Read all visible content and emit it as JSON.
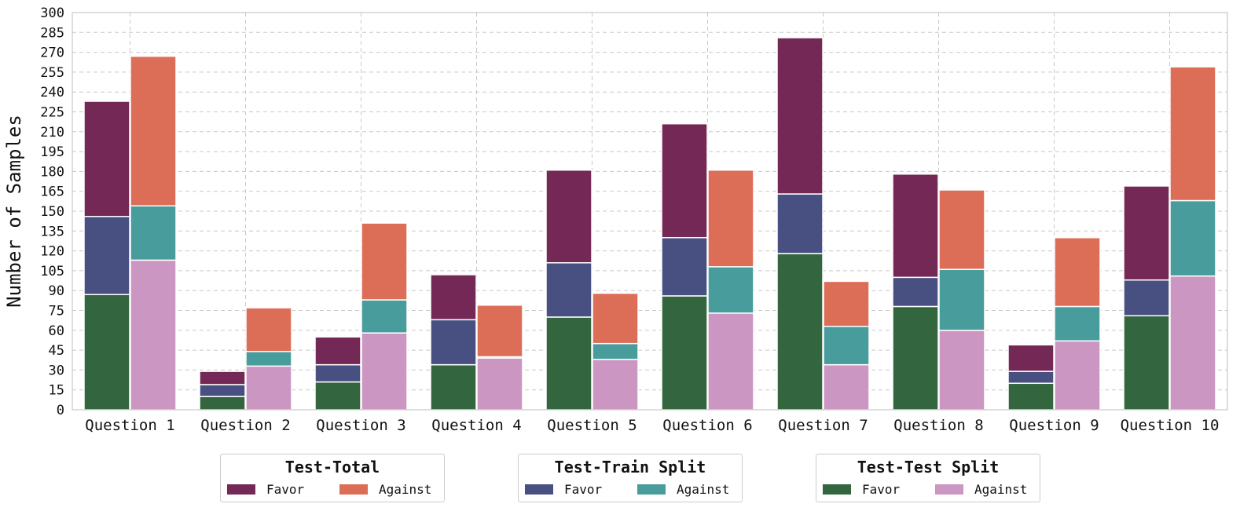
{
  "chart_data": {
    "type": "bar",
    "stacked": true,
    "categories": [
      "Question 1",
      "Question 2",
      "Question 3",
      "Question 4",
      "Question 5",
      "Question 6",
      "Question 7",
      "Question 8",
      "Question 9",
      "Question 10"
    ],
    "ylabel": "Number of Samples",
    "ylim": [
      0,
      300
    ],
    "yticks": [
      "0",
      "15",
      "30",
      "45",
      "60",
      "75",
      "90",
      "105",
      "120",
      "135",
      "150",
      "165",
      "180",
      "195",
      "210",
      "225",
      "240",
      "255",
      "270",
      "285",
      "300"
    ],
    "grid": true,
    "bars": [
      {
        "group": "favor",
        "segments": [
          {
            "series": "Test-Test Split Favor",
            "values": [
              87,
              10,
              21,
              34,
              70,
              86,
              118,
              78,
              20,
              71
            ]
          },
          {
            "series": "Test-Train Split Favor",
            "values": [
              59,
              9,
              13,
              34,
              41,
              44,
              45,
              22,
              9,
              27
            ]
          },
          {
            "series": "Test-Total Favor",
            "values": [
              87,
              10,
              21,
              34,
              70,
              86,
              118,
              78,
              20,
              71
            ]
          }
        ]
      },
      {
        "group": "against",
        "segments": [
          {
            "series": "Test-Test Split Against",
            "values": [
              113,
              33,
              58,
              39,
              38,
              73,
              34,
              60,
              52,
              101
            ]
          },
          {
            "series": "Test-Train Split Against",
            "values": [
              41,
              11,
              25,
              1,
              12,
              35,
              29,
              46,
              26,
              57
            ]
          },
          {
            "series": "Test-Total Against",
            "values": [
              113,
              33,
              58,
              39,
              38,
              73,
              34,
              60,
              52,
              101
            ]
          }
        ]
      }
    ],
    "colors": {
      "Test-Total Favor": "#742855",
      "Test-Total Against": "#dc6e58",
      "Test-Train Split Favor": "#485082",
      "Test-Train Split Against": "#489c9c",
      "Test-Test Split Favor": "#33663f",
      "Test-Test Split Against": "#cc96c3"
    },
    "legend": [
      {
        "title": "Test-Total",
        "entries": [
          {
            "label": "Favor",
            "color": "#742855"
          },
          {
            "label": "Against",
            "color": "#dc6e58"
          }
        ]
      },
      {
        "title": "Test-Train Split",
        "entries": [
          {
            "label": "Favor",
            "color": "#485082"
          },
          {
            "label": "Against",
            "color": "#489c9c"
          }
        ]
      },
      {
        "title": "Test-Test Split",
        "entries": [
          {
            "label": "Favor",
            "color": "#33663f"
          },
          {
            "label": "Against",
            "color": "#cc96c3"
          }
        ]
      }
    ],
    "legend_position": "bottom"
  }
}
